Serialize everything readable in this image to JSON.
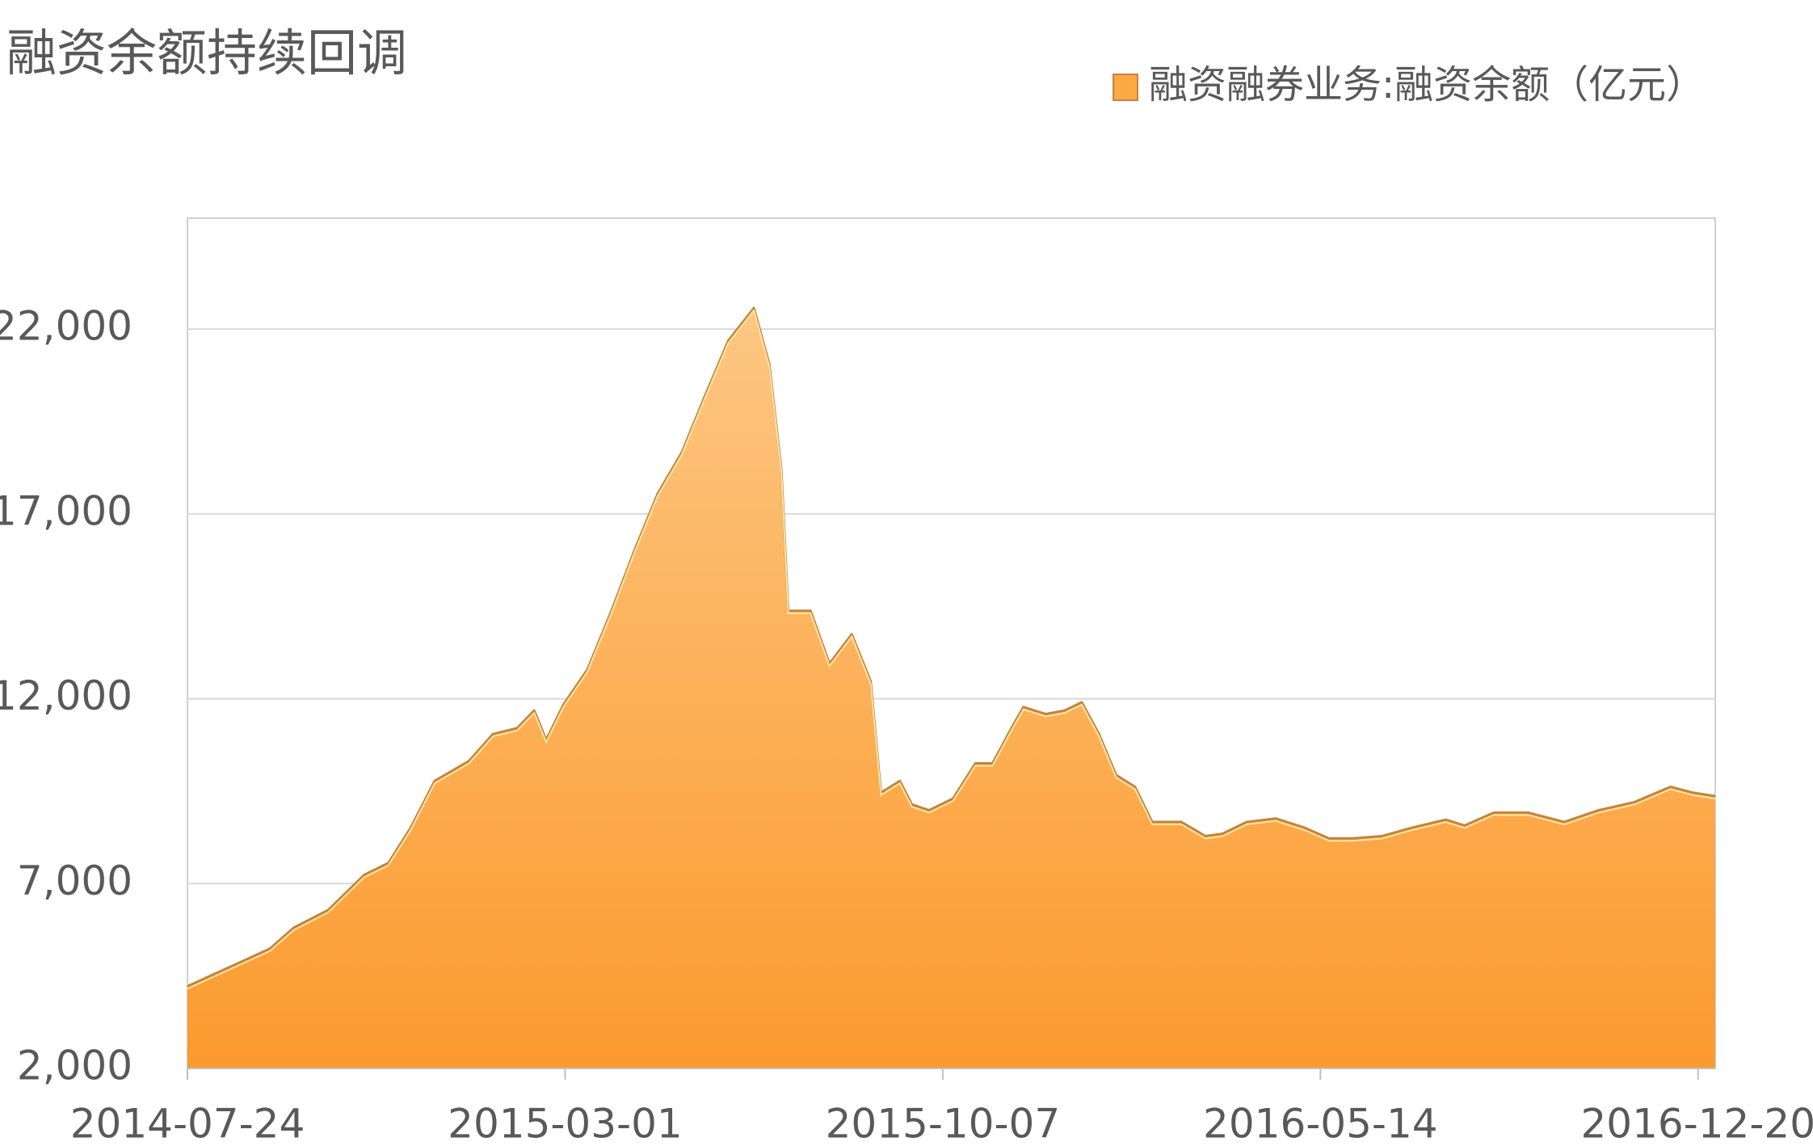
{
  "chart_data": {
    "type": "area",
    "title": "融资余额持续回调",
    "series": [
      {
        "name": "融资融券业务:融资余额（亿元）",
        "color": "#fba845",
        "values": [
          4222,
          4794,
          5238,
          5810,
          6286,
          7238,
          7556,
          8508,
          9778,
          10317,
          11048,
          11206,
          11683,
          10889,
          11841,
          12794,
          14381,
          15968,
          17556,
          18667,
          20254,
          21683,
          22571,
          21048,
          18190,
          14381,
          14381,
          12952,
          13746,
          12476,
          9460,
          9778,
          9143,
          8984,
          9302,
          10254,
          10254,
          11206,
          11778,
          11587,
          11683,
          11905,
          11048,
          9937,
          9619,
          8667,
          8667,
          8286,
          8349,
          8667,
          8762,
          8508,
          8222,
          8222,
          8286,
          8508,
          8730,
          8571,
          8921,
          8921,
          8667,
          8984,
          9206,
          9619,
          9460,
          9365
        ]
      }
    ],
    "x": [
      "2014-07-24",
      "2014-08-20",
      "2014-09-10",
      "2014-09-24",
      "2014-10-14",
      "2014-11-04",
      "2014-11-18",
      "2014-12-01",
      "2014-12-15",
      "2015-01-04",
      "2015-01-18",
      "2015-02-01",
      "2015-02-11",
      "2015-02-18",
      "2015-02-28",
      "2015-03-14",
      "2015-03-28",
      "2015-04-10",
      "2015-04-24",
      "2015-05-08",
      "2015-05-22",
      "2015-06-04",
      "2015-06-19",
      "2015-06-28",
      "2015-07-05",
      "2015-07-09",
      "2015-07-22",
      "2015-08-02",
      "2015-08-15",
      "2015-08-26",
      "2015-09-01",
      "2015-09-12",
      "2015-09-19",
      "2015-09-29",
      "2015-10-13",
      "2015-10-26",
      "2015-11-05",
      "2015-11-16",
      "2015-11-23",
      "2015-12-06",
      "2015-12-17",
      "2015-12-27",
      "2016-01-06",
      "2016-01-16",
      "2016-01-27",
      "2016-02-06",
      "2016-02-23",
      "2016-03-08",
      "2016-03-18",
      "2016-04-01",
      "2016-04-18",
      "2016-05-05",
      "2016-05-19",
      "2016-06-02",
      "2016-06-19",
      "2016-07-06",
      "2016-07-26",
      "2016-08-06",
      "2016-08-23",
      "2016-09-12",
      "2016-10-03",
      "2016-10-23",
      "2016-11-13",
      "2016-12-04",
      "2016-12-17",
      "2016-12-30"
    ],
    "xlim": [
      "2014-07-24",
      "2016-12-30"
    ],
    "xticks": [
      "2014-07-24",
      "2015-03-01",
      "2015-10-07",
      "2016-05-14",
      "2016-12-20"
    ],
    "ylim": [
      2000,
      25000
    ],
    "yticks": [
      {
        "value": 2000,
        "label": "2,000"
      },
      {
        "value": 7000,
        "label": "7,000"
      },
      {
        "value": 12000,
        "label": "12,000"
      },
      {
        "value": 17000,
        "label": "17,000"
      },
      {
        "value": 22000,
        "label": "22,000"
      }
    ],
    "grid": true,
    "legend": "top-right"
  }
}
